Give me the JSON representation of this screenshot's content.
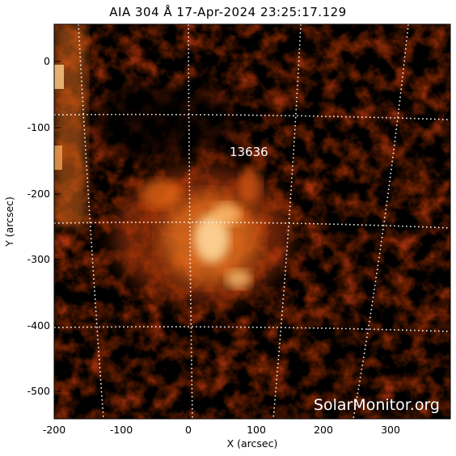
{
  "title": "AIA 304 Å 17-Apr-2024 23:25:17.129",
  "xaxis": {
    "label": "X (arcsec)",
    "ticks": [
      "-200",
      "-100",
      "0",
      "100",
      "200",
      "300"
    ]
  },
  "yaxis": {
    "label": "Y (arcsec)",
    "ticks": [
      "0",
      "-100",
      "-200",
      "-300",
      "-400",
      "-500"
    ]
  },
  "region": {
    "number": "13636"
  },
  "watermark": "SolarMonitor.org",
  "colors": {
    "background": "#000000",
    "emission_low": "#5a0a00",
    "emission_mid": "#d2470a",
    "emission_high": "#ffd79a",
    "grid": "#ffffff"
  }
}
